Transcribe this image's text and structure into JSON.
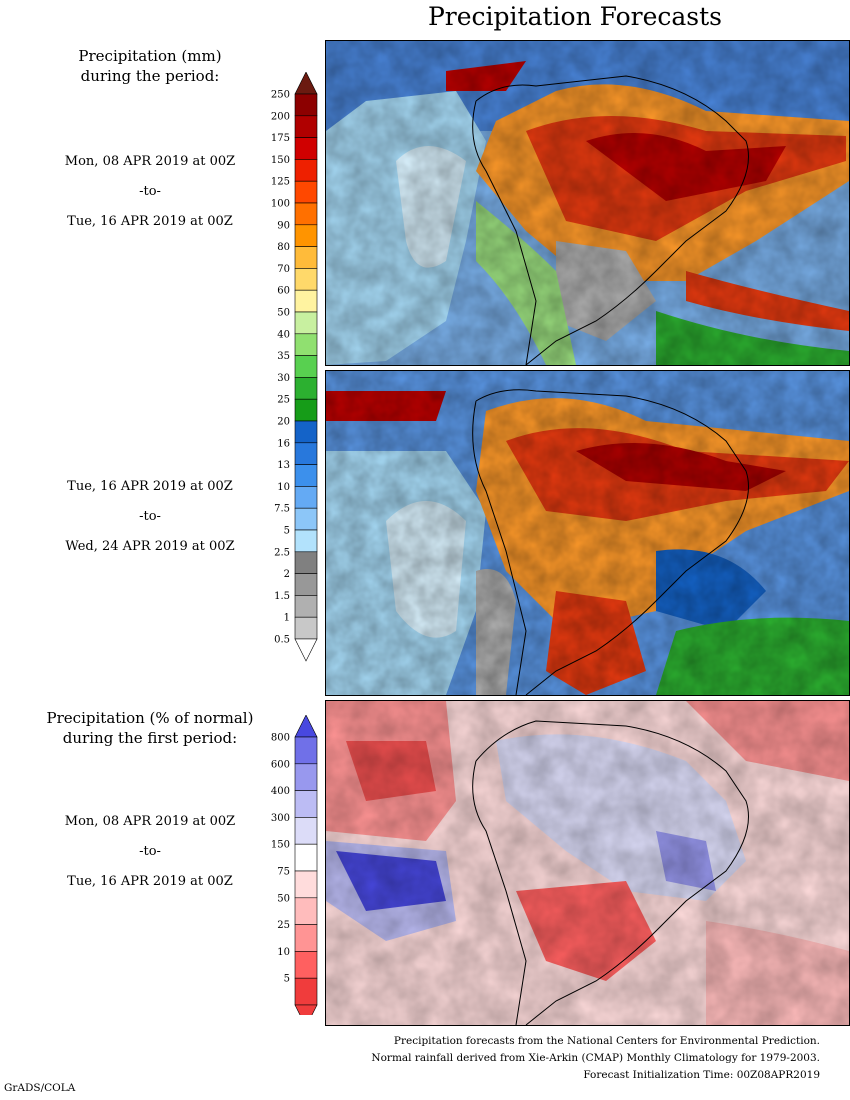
{
  "title": "Precipitation Forecasts",
  "legend_mm": {
    "heading": [
      "Precipitation (mm)",
      "during the period:"
    ],
    "ticks": [
      "250",
      "200",
      "175",
      "150",
      "125",
      "100",
      "90",
      "80",
      "70",
      "60",
      "50",
      "40",
      "35",
      "30",
      "25",
      "20",
      "16",
      "13",
      "10",
      "7.5",
      "5",
      "2.5",
      "2",
      "1.5",
      "1",
      "0.5"
    ],
    "colors": [
      "#6b1a10",
      "#8c0000",
      "#b00000",
      "#d00000",
      "#ee2000",
      "#ff4800",
      "#ff7000",
      "#ff9400",
      "#ffbb3a",
      "#ffd96a",
      "#fff3a0",
      "#c8f0a0",
      "#90e070",
      "#58d050",
      "#2cb030",
      "#169c18",
      "#1463c8",
      "#2878dc",
      "#3c90ec",
      "#64aaf4",
      "#8cc6f8",
      "#b2e2fc",
      "#808080",
      "#989898",
      "#b0b0b0",
      "#c8c8c8"
    ]
  },
  "legend_pct": {
    "heading": [
      "Precipitation (% of normal)",
      "during the first period:"
    ],
    "ticks": [
      "800",
      "600",
      "400",
      "300",
      "150",
      "75",
      "50",
      "25",
      "10",
      "5"
    ],
    "colors": [
      "#4848e0",
      "#7070e8",
      "#9898ee",
      "#bcbcf4",
      "#dcdcf8",
      "#ffffff",
      "#ffdcdc",
      "#ffbcbc",
      "#ff9494",
      "#ff6060",
      "#f03c3c"
    ]
  },
  "periods": [
    {
      "start": "Mon, 08 APR 2019 at 00Z",
      "sep": "-to-",
      "end": "Tue, 16 APR 2019 at 00Z"
    },
    {
      "start": "Tue, 16 APR 2019 at 00Z",
      "sep": "-to-",
      "end": "Wed, 24 APR 2019 at 00Z"
    },
    {
      "start": "Mon, 08 APR 2019 at 00Z",
      "sep": "-to-",
      "end": "Tue, 16 APR 2019 at 00Z"
    }
  ],
  "footer": {
    "line1": "Precipitation forecasts from the National Centers for Environmental Prediction.",
    "line2": "Normal rainfall derived from Xie-Arkin (CMAP) Monthly Climatology for 1979-2003.",
    "line3": "Forecast Initialization Time: 00Z08APR2019"
  },
  "credit": "GrADS/COLA"
}
